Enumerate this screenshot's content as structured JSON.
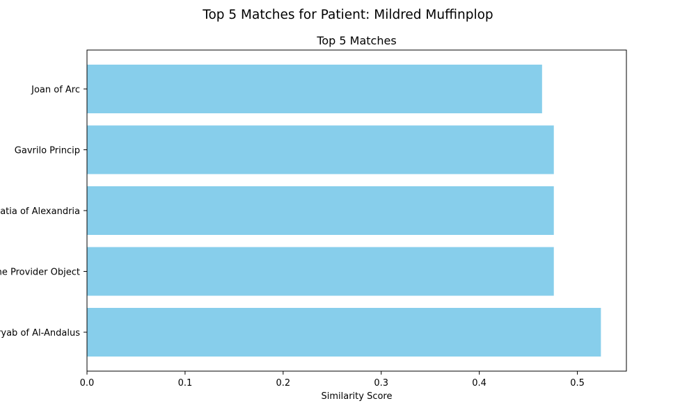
{
  "figure_title": "Top 5 Matches for Patient: Mildred Muffinplop",
  "chart_data": {
    "type": "bar",
    "orientation": "horizontal",
    "title": "Top 5 Matches",
    "xlabel": "Similarity Score",
    "ylabel": "",
    "categories": [
      "Joan of Arc",
      "Gavrilo Princip",
      "Hypatia of Alexandria",
      "The Provider Object",
      "Ziryab of Al-Andalus"
    ],
    "values": [
      0.464,
      0.476,
      0.476,
      0.476,
      0.524
    ],
    "xlim": [
      0.0,
      0.55
    ],
    "xticks": [
      0.0,
      0.1,
      0.2,
      0.3,
      0.4,
      0.5
    ],
    "xtick_labels": [
      "0.0",
      "0.1",
      "0.2",
      "0.3",
      "0.4",
      "0.5"
    ],
    "grid": false,
    "legend": "none",
    "bar_color": "#87ceeb"
  }
}
